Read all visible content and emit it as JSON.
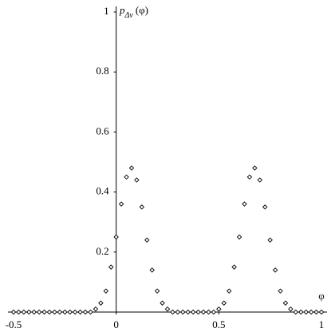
{
  "chart_data": {
    "type": "scatter",
    "x_label": "φ",
    "y_label": "p",
    "y_label_sub": "Δν",
    "y_label_arg": "(φ)",
    "x": [
      -0.5,
      -0.475,
      -0.45,
      -0.425,
      -0.4,
      -0.375,
      -0.35,
      -0.325,
      -0.3,
      -0.275,
      -0.25,
      -0.225,
      -0.2,
      -0.175,
      -0.15,
      -0.125,
      -0.1,
      -0.075,
      -0.05,
      -0.025,
      0,
      0.025,
      0.05,
      0.075,
      0.1,
      0.125,
      0.15,
      0.175,
      0.2,
      0.225,
      0.25,
      0.275,
      0.3,
      0.325,
      0.35,
      0.375,
      0.4,
      0.425,
      0.45,
      0.475,
      0.5,
      0.525,
      0.55,
      0.575,
      0.6,
      0.625,
      0.65,
      0.675,
      0.7,
      0.725,
      0.75,
      0.775,
      0.8,
      0.825,
      0.85,
      0.875,
      0.9,
      0.925,
      0.95,
      0.975,
      1
    ],
    "values": [
      0,
      0,
      0,
      0,
      0,
      0,
      0,
      0,
      0,
      0,
      0,
      0,
      0,
      0,
      0,
      0,
      0.01,
      0.03,
      0.07,
      0.15,
      0.25,
      0.36,
      0.45,
      0.48,
      0.44,
      0.35,
      0.24,
      0.14,
      0.07,
      0.03,
      0.01,
      0,
      0,
      0,
      0,
      0,
      0,
      0,
      0,
      0,
      0.01,
      0.03,
      0.07,
      0.15,
      0.25,
      0.36,
      0.45,
      0.48,
      0.44,
      0.35,
      0.24,
      0.14,
      0.07,
      0.03,
      0.01,
      0,
      0,
      0,
      0,
      0,
      0
    ],
    "color": "#000000",
    "xlim": [
      -0.5,
      1
    ],
    "xticks": [
      -0.5,
      0,
      0.5,
      1
    ],
    "ylim": [
      0,
      1
    ],
    "yticks": [
      0.2,
      0.4,
      0.6,
      0.8,
      1
    ]
  }
}
